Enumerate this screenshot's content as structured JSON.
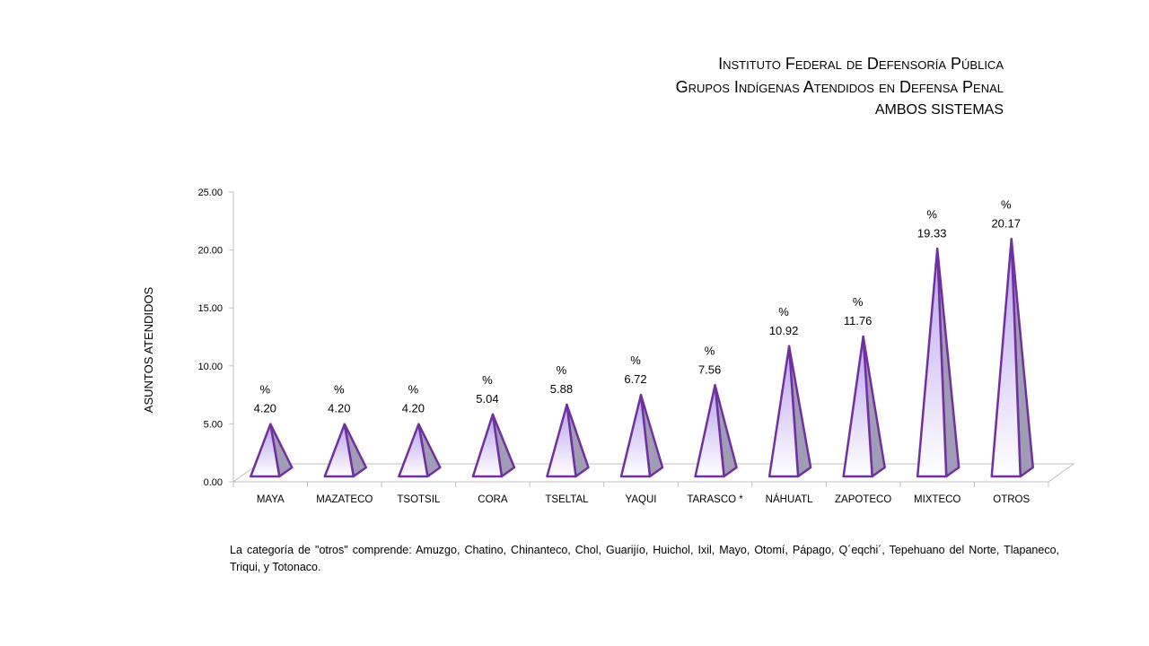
{
  "header": {
    "line1": "Instituto Federal de Defensoría Pública",
    "line2": "Grupos Indígenas  Atendidos en Defensa Penal",
    "line3": "AMBOS SISTEMAS"
  },
  "footnote": "La categoría de \"otros\" comprende: Amuzgo, Chatino, Chinanteco, Chol, Guarijío, Huichol, Ixil, Mayo, Otomí,  Pápago, Q´eqchi´, Tepehuano del Norte, Tlapaneco, Triqui, y Totonaco.",
  "colors": {
    "outline": "#7030a0",
    "face_top": "#b9a3ef",
    "face_bottom": "#ffffff",
    "side": "#a09cb5",
    "axis": "#bfbfbf"
  },
  "chart_data": {
    "type": "bar",
    "shape": "pyramid",
    "ylabel": "ASUNTOS ATENDIDOS",
    "ylim": [
      0,
      25
    ],
    "yticks": [
      "0.00",
      "5.00",
      "10.00",
      "15.00",
      "20.00",
      "25.00"
    ],
    "grid": false,
    "legend": "none",
    "categories": [
      "MAYA",
      "MAZATECO",
      "TSOTSIL",
      "CORA",
      "TSELTAL",
      "YAQUI",
      "TARASCO *",
      "NÁHUATL",
      "ZAPOTECO",
      "MIXTECO",
      "OTROS"
    ],
    "values": [
      4.2,
      4.2,
      4.2,
      5.04,
      5.88,
      6.72,
      7.56,
      10.92,
      11.76,
      19.33,
      20.17
    ],
    "label_prefix": "%",
    "data_labels": [
      "4.20",
      "4.20",
      "4.20",
      "5.04",
      "5.88",
      "6.72",
      "7.56",
      "10.92",
      "11.76",
      "19.33",
      "20.17"
    ]
  }
}
